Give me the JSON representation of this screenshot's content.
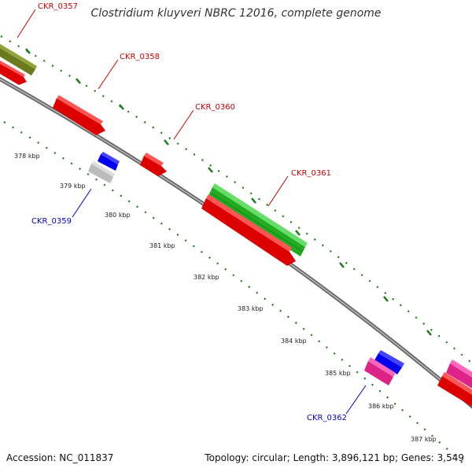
{
  "title": "Clostridium kluyveri NBRC 12016, complete genome",
  "footer": {
    "accession": "Accession: NC_011837",
    "summary": "Topology: circular; Length: 3,896,121 bp; Genes: 3,549"
  },
  "colors": {
    "forward_label": "#cc0000",
    "reverse_label": "#0000cc",
    "tick": "#1a7a1a",
    "backbone": "#888888"
  },
  "ticks": [
    {
      "label": "378 kbp"
    },
    {
      "label": "379 kbp"
    },
    {
      "label": "380 kbp"
    },
    {
      "label": "381 kbp"
    },
    {
      "label": "382 kbp"
    },
    {
      "label": "383 kbp"
    },
    {
      "label": "384 kbp"
    },
    {
      "label": "385 kbp"
    },
    {
      "label": "386 kbp"
    },
    {
      "label": "387 kbp"
    }
  ],
  "genes": [
    {
      "id": "CKR_0357",
      "strand": "forward",
      "color": "olive"
    },
    {
      "id": "CKR_0358",
      "strand": "forward",
      "color": "red"
    },
    {
      "id": "CKR_0359",
      "strand": "reverse",
      "color": "gray"
    },
    {
      "id": "CKR_0360",
      "strand": "forward",
      "color": "red"
    },
    {
      "id": "CKR_0361",
      "strand": "forward",
      "color": "green"
    },
    {
      "id": "CKR_0362",
      "strand": "reverse",
      "color": "pink"
    }
  ]
}
